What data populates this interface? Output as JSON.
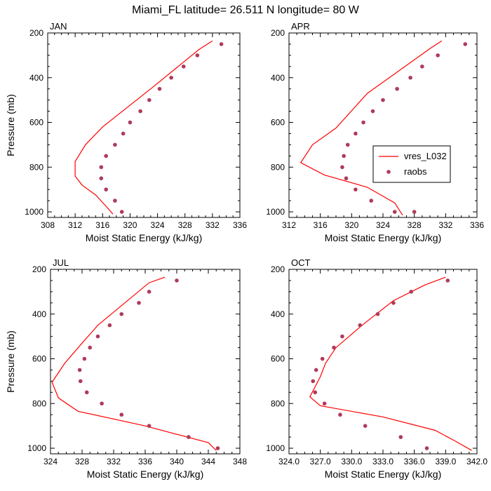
{
  "figure": {
    "title": "Miami_FL  latitude= 26.511 N longitude= 80 W"
  },
  "legend": {
    "model_label": "vres_L032",
    "obs_label": "raobs"
  },
  "colors": {
    "model_line": "#ff0000",
    "obs_marker": "#b03a5a",
    "axis": "#000000"
  },
  "chart_data": [
    {
      "type": "line",
      "panel": "JAN",
      "xlabel": "Moist Static Energy (kJ/kg)",
      "ylabel": "Pressure (mb)",
      "xlim": [
        308,
        336
      ],
      "ylim": [
        200,
        1025
      ],
      "y_inverted": true,
      "xticks": [
        308,
        312,
        316,
        320,
        324,
        328,
        332,
        336
      ],
      "xtick_labels": [
        "308",
        "312",
        "316",
        "320",
        "324",
        "328",
        "332",
        "336"
      ],
      "yticks": [
        200,
        400,
        600,
        800,
        1000
      ],
      "ytick_labels": [
        "200",
        "400",
        "600",
        "800",
        "1000"
      ],
      "series": [
        {
          "name": "vres_L032",
          "kind": "line",
          "x": [
            332.0,
            330.0,
            323.0,
            316.0,
            313.5,
            312.0,
            312.0,
            313.0,
            315.0,
            316.5,
            317.5
          ],
          "y": [
            235,
            275,
            450,
            620,
            700,
            775,
            840,
            880,
            925,
            975,
            1010
          ]
        },
        {
          "name": "raobs",
          "kind": "scatter",
          "x": [
            333.3,
            329.8,
            327.8,
            326.0,
            324.3,
            322.8,
            321.5,
            320.0,
            319.0,
            317.8,
            316.5,
            315.8,
            315.8,
            316.5,
            317.8,
            318.8
          ],
          "y": [
            250,
            300,
            350,
            400,
            450,
            500,
            550,
            600,
            650,
            700,
            750,
            800,
            850,
            900,
            950,
            1000
          ]
        }
      ]
    },
    {
      "type": "line",
      "panel": "APR",
      "xlabel": "Moist Static Energy (kJ/kg)",
      "ylabel": "",
      "xlim": [
        312,
        336
      ],
      "ylim": [
        200,
        1025
      ],
      "y_inverted": true,
      "xticks": [
        312,
        316,
        320,
        324,
        328,
        332,
        336
      ],
      "xtick_labels": [
        "312",
        "316",
        "320",
        "324",
        "328",
        "332",
        "336"
      ],
      "yticks": [
        200,
        400,
        600,
        800,
        1000
      ],
      "ytick_labels": [
        "200",
        "400",
        "600",
        "800",
        "1000"
      ],
      "series": [
        {
          "name": "vres_L032",
          "kind": "line",
          "x": [
            331.5,
            330.0,
            322.0,
            318.0,
            315.0,
            313.5,
            316.5,
            322.0,
            325.5,
            326.5
          ],
          "y": [
            235,
            270,
            470,
            625,
            700,
            780,
            835,
            890,
            960,
            1015
          ]
        },
        {
          "name": "raobs",
          "kind": "scatter",
          "x": [
            334.5,
            331.0,
            329.0,
            327.5,
            325.8,
            324.0,
            322.7,
            321.5,
            320.5,
            319.5,
            319.0,
            318.8,
            319.3,
            320.5,
            322.5,
            325.5,
            328.0
          ],
          "y": [
            250,
            300,
            350,
            400,
            450,
            500,
            550,
            600,
            650,
            700,
            750,
            800,
            850,
            900,
            950,
            1000,
            1000
          ]
        }
      ]
    },
    {
      "type": "line",
      "panel": "JUL",
      "xlabel": "Moist Static Energy (kJ/kg)",
      "ylabel": "Pressure (mb)",
      "xlim": [
        324,
        348
      ],
      "ylim": [
        200,
        1025
      ],
      "y_inverted": true,
      "xticks": [
        324,
        328,
        332,
        336,
        340,
        344,
        348
      ],
      "xtick_labels": [
        "324",
        "328",
        "332",
        "336",
        "340",
        "344",
        "348"
      ],
      "series": [
        {
          "name": "vres_L032",
          "kind": "line",
          "x": [
            338.5,
            336.5,
            330.0,
            328.0,
            325.8,
            324.2,
            325.0,
            327.5,
            336.0,
            344.0,
            345.0
          ],
          "y": [
            235,
            260,
            450,
            530,
            620,
            705,
            775,
            835,
            900,
            975,
            1010
          ]
        },
        {
          "name": "raobs",
          "kind": "scatter",
          "x": [
            340.0,
            336.5,
            335.2,
            333.0,
            331.5,
            330.0,
            329.0,
            328.3,
            327.7,
            327.8,
            328.6,
            330.5,
            333.0,
            336.5,
            341.5,
            345.2
          ],
          "y": [
            250,
            300,
            350,
            400,
            450,
            500,
            550,
            600,
            650,
            700,
            750,
            800,
            850,
            900,
            950,
            1000
          ]
        }
      ],
      "yticks": [
        200,
        400,
        600,
        800,
        1000
      ],
      "ytick_labels": [
        "200",
        "400",
        "600",
        "800",
        "1000"
      ]
    },
    {
      "type": "line",
      "panel": "OCT",
      "xlabel": "Moist Static Energy (kJ/kg)",
      "ylabel": "",
      "xlim": [
        324.0,
        342.0
      ],
      "ylim": [
        200,
        1025
      ],
      "y_inverted": true,
      "xticks": [
        324,
        327,
        330,
        333,
        336,
        339,
        342
      ],
      "xtick_labels": [
        "324.0",
        "327.0",
        "330.0",
        "333.0",
        "336.0",
        "339.0",
        "342.0"
      ],
      "yticks": [
        200,
        400,
        600,
        800,
        1000
      ],
      "ytick_labels": [
        "200",
        "400",
        "600",
        "800",
        "1000"
      ],
      "series": [
        {
          "name": "vres_L032",
          "kind": "line",
          "x": [
            339.0,
            337.0,
            334.0,
            331.0,
            328.5,
            327.5,
            327.0,
            326.0,
            327.0,
            333.0,
            338.0,
            340.0,
            341.5
          ],
          "y": [
            235,
            270,
            340,
            450,
            550,
            620,
            680,
            770,
            810,
            860,
            920,
            970,
            1010
          ]
        },
        {
          "name": "raobs",
          "kind": "scatter",
          "x": [
            339.2,
            335.7,
            334.0,
            332.5,
            330.8,
            329.1,
            328.3,
            327.2,
            326.6,
            326.3,
            326.5,
            327.4,
            328.9,
            331.3,
            334.7,
            337.2
          ],
          "y": [
            250,
            300,
            350,
            400,
            450,
            500,
            550,
            600,
            650,
            700,
            750,
            800,
            850,
            900,
            950,
            1000
          ]
        }
      ]
    }
  ]
}
